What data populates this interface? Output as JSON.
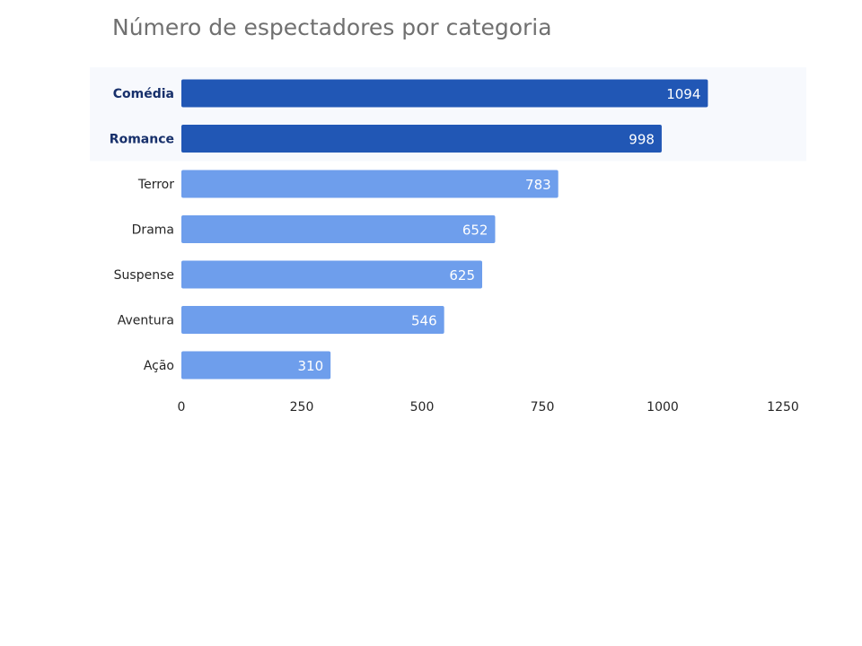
{
  "chart_data": {
    "type": "bar",
    "orientation": "horizontal",
    "title": "Número de espectadores por categoria",
    "categories": [
      "Comédia",
      "Romance",
      "Terror",
      "Drama",
      "Suspense",
      "Aventura",
      "Ação"
    ],
    "values": [
      1094,
      998,
      783,
      652,
      625,
      546,
      310
    ],
    "highlighted": [
      "Comédia",
      "Romance"
    ],
    "xlim": [
      0,
      1250
    ],
    "xticks": [
      0,
      250,
      500,
      750,
      1000,
      1250
    ],
    "xlabel": "",
    "ylabel": "",
    "grid": false,
    "colors": {
      "highlight": "#2157b5",
      "normal": "#6e9eec",
      "highlight_band": "#f7f9fd",
      "title": "#707070"
    }
  }
}
